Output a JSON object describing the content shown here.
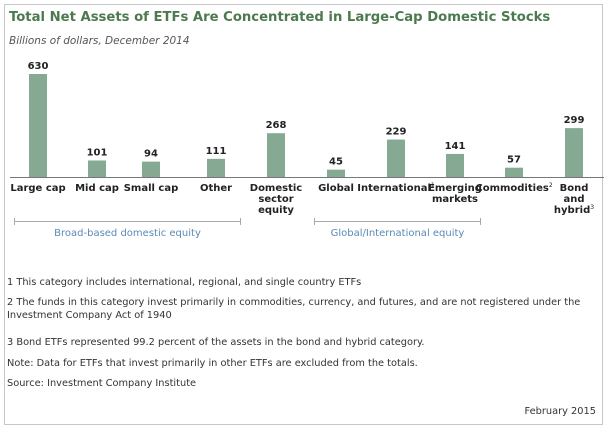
{
  "title": "Total Net Assets of ETFs Are Concentrated in Large-Cap Domestic Stocks",
  "subtitle": "Billions of dollars, December 2014",
  "colors": {
    "bar": "#86a993",
    "title": "#4c7a4e",
    "group_label": "#5b8ab5",
    "bracket": "#aaaaaa"
  },
  "chart_data": {
    "type": "bar",
    "title": "Total Net Assets of ETFs Are Concentrated in Large-Cap Domestic Stocks",
    "subtitle": "Billions of dollars, December 2014",
    "categories": [
      {
        "lines": [
          "Large cap"
        ],
        "sup": ""
      },
      {
        "lines": [
          "Mid cap"
        ],
        "sup": ""
      },
      {
        "lines": [
          "Small cap"
        ],
        "sup": ""
      },
      {
        "lines": [
          "Other"
        ],
        "sup": ""
      },
      {
        "lines": [
          "Domestic",
          "sector",
          "equity"
        ],
        "sup": ""
      },
      {
        "lines": [
          "Global"
        ],
        "sup": ""
      },
      {
        "lines": [
          "International"
        ],
        "sup": "1"
      },
      {
        "lines": [
          "Emerging",
          "markets"
        ],
        "sup": ""
      },
      {
        "lines": [
          "Commodities"
        ],
        "sup": "2"
      },
      {
        "lines": [
          "Bond",
          "and",
          "hybrid"
        ],
        "sup": "3"
      }
    ],
    "values": [
      630,
      101,
      94,
      111,
      268,
      45,
      229,
      141,
      57,
      299
    ],
    "ylim": [
      0,
      630
    ],
    "groups": [
      {
        "label": "Broad-based domestic equity",
        "from": 0,
        "to": 3
      },
      {
        "label": "Global/International equity",
        "from": 5,
        "to": 7
      }
    ]
  },
  "footnotes": [
    "1 This category includes international, regional, and single country ETFs",
    "2 The funds in this category invest primarily in commodities, currency, and futures, and are not registered under the Investment Company Act of 1940",
    "3 Bond ETFs represented 99.2 percent of the assets in the bond and hybrid category.",
    "Note: Data for ETFs that invest primarily in other ETFs are excluded from the totals.",
    "Source: Investment Company Institute"
  ],
  "date": "February 2015"
}
